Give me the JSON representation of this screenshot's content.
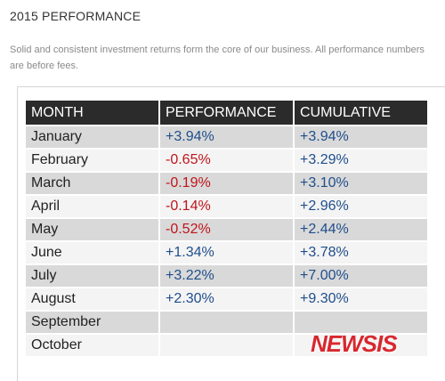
{
  "header": {
    "title": "2015 PERFORMANCE",
    "description": "Solid and consistent investment returns form the core of our business. All performance numbers are before fees."
  },
  "table": {
    "columns": [
      "MONTH",
      "PERFORMANCE",
      "CUMULATIVE"
    ],
    "rows": [
      {
        "month": "January",
        "performance": "+3.94%",
        "cumulative": "+3.94%"
      },
      {
        "month": "February",
        "performance": "-0.65%",
        "cumulative": "+3.29%"
      },
      {
        "month": "March",
        "performance": "-0.19%",
        "cumulative": "+3.10%"
      },
      {
        "month": "April",
        "performance": "-0.14%",
        "cumulative": "+2.96%"
      },
      {
        "month": "May",
        "performance": "-0.52%",
        "cumulative": "+2.44%"
      },
      {
        "month": "June",
        "performance": "+1.34%",
        "cumulative": "+3.78%"
      },
      {
        "month": "July",
        "performance": "+3.22%",
        "cumulative": "+7.00%"
      },
      {
        "month": "August",
        "performance": "+2.30%",
        "cumulative": "+9.30%"
      },
      {
        "month": "September",
        "performance": "",
        "cumulative": ""
      },
      {
        "month": "October",
        "performance": "",
        "cumulative": ""
      }
    ]
  },
  "colors": {
    "positive": "#1f4e8c",
    "negative": "#c0151b",
    "header_bg": "#2b2b2b"
  },
  "watermark": "NEWSIS"
}
